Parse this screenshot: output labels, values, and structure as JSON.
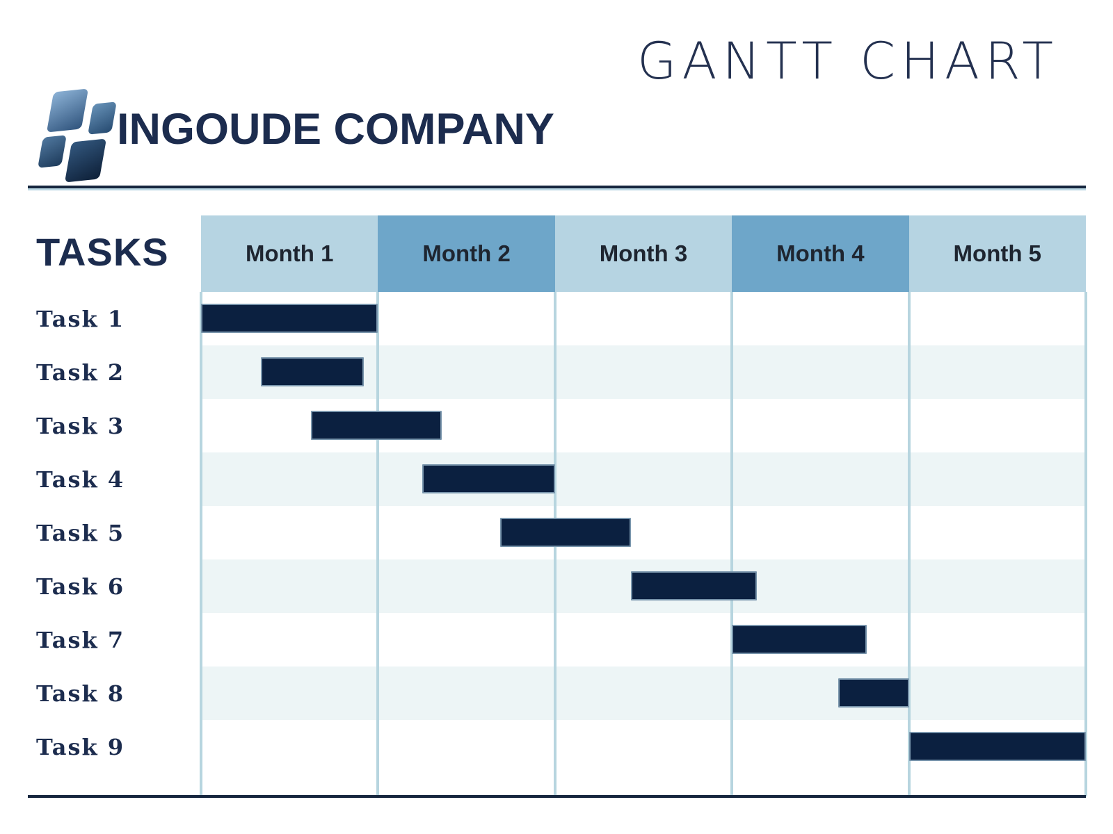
{
  "page": {
    "title": "GANTT CHART",
    "company_name": "INGOUDE COMPANY",
    "tasks_column_label": "TASKS"
  },
  "chart_data": {
    "type": "gantt",
    "title": "GANTT CHART",
    "x_axis": {
      "unit": "month",
      "categories": [
        "Month 1",
        "Month 2",
        "Month 3",
        "Month 4",
        "Month 5"
      ],
      "range": [
        0,
        5
      ]
    },
    "tasks": [
      {
        "label": "Task 1",
        "start": 0.0,
        "end": 1.0
      },
      {
        "label": "Task 2",
        "start": 0.34,
        "end": 0.92
      },
      {
        "label": "Task 3",
        "start": 0.62,
        "end": 1.36
      },
      {
        "label": "Task 4",
        "start": 1.25,
        "end": 2.0
      },
      {
        "label": "Task 5",
        "start": 1.69,
        "end": 2.43
      },
      {
        "label": "Task 6",
        "start": 2.43,
        "end": 3.14
      },
      {
        "label": "Task 7",
        "start": 3.0,
        "end": 3.76
      },
      {
        "label": "Task 8",
        "start": 3.6,
        "end": 4.0
      },
      {
        "label": "Task 9",
        "start": 4.0,
        "end": 5.0
      }
    ],
    "layout_hints": {
      "legend": "none",
      "row_striping": true,
      "header_colors_alternate": true,
      "gridlines": "vertical month boundaries"
    }
  },
  "colors": {
    "bar_fill": "#0b2040",
    "header_light": "#b6d4e2",
    "header_dark": "#6ea6c9",
    "row_stripe": "#edf5f6",
    "grid_line": "#b7d5df",
    "divider": "#16263e",
    "text_navy": "#1c2c4e",
    "title_navy": "#243150",
    "month_text": "#1e2530"
  }
}
